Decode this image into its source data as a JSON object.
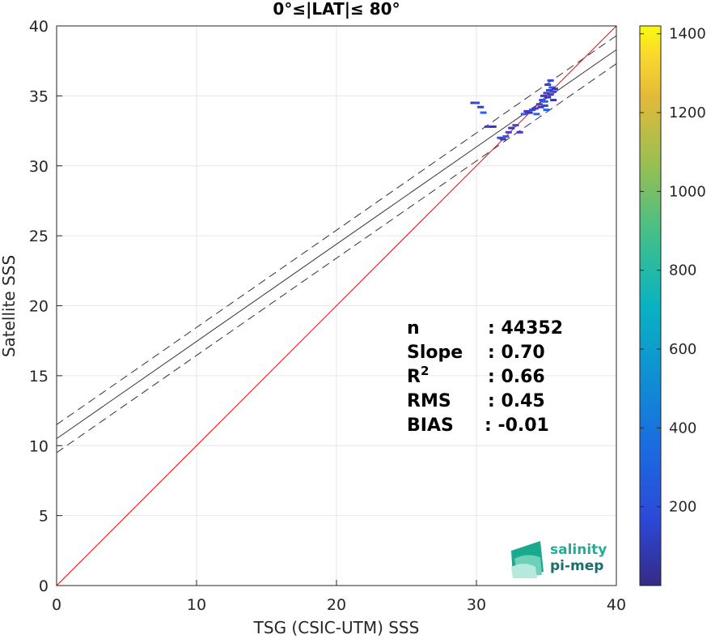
{
  "chart_data": {
    "type": "scatter",
    "title": "0°≤|LAT|≤ 80°",
    "xlabel": "TSG (CSIC-UTM) SSS",
    "ylabel": "Satellite SSS",
    "xlim": [
      0,
      40
    ],
    "ylim": [
      0,
      40
    ],
    "xticks": [
      "0",
      "10",
      "20",
      "30",
      "40"
    ],
    "yticks": [
      "0",
      "5",
      "10",
      "15",
      "20",
      "25",
      "30",
      "35",
      "40"
    ],
    "grid": true,
    "colorbar": {
      "ticks": [
        "200",
        "400",
        "600",
        "800",
        "1000",
        "1200",
        "1400"
      ],
      "tick_values": [
        200,
        400,
        600,
        800,
        1000,
        1200,
        1400
      ],
      "range": [
        0,
        1420
      ],
      "colormap": "parula"
    },
    "one_to_one_line": {
      "x": [
        0,
        40
      ],
      "y": [
        0,
        40
      ],
      "color": "#ff0000"
    },
    "fit_line": {
      "x": [
        0,
        40
      ],
      "y": [
        10.5,
        38.3
      ],
      "color": "#000000"
    },
    "fit_upper": {
      "x": [
        0,
        40
      ],
      "y": [
        11.5,
        39.3
      ]
    },
    "fit_lower": {
      "x": [
        0,
        40
      ],
      "y": [
        9.5,
        37.3
      ]
    },
    "points": [
      {
        "x": 29.8,
        "y": 34.5
      },
      {
        "x": 30.0,
        "y": 34.5
      },
      {
        "x": 30.3,
        "y": 34.2
      },
      {
        "x": 30.5,
        "y": 33.8
      },
      {
        "x": 30.8,
        "y": 32.8
      },
      {
        "x": 31.2,
        "y": 32.8
      },
      {
        "x": 31.7,
        "y": 32.0
      },
      {
        "x": 31.9,
        "y": 31.9
      },
      {
        "x": 32.1,
        "y": 32.1
      },
      {
        "x": 32.3,
        "y": 32.4
      },
      {
        "x": 32.5,
        "y": 32.7
      },
      {
        "x": 32.8,
        "y": 32.9
      },
      {
        "x": 33.1,
        "y": 32.4
      },
      {
        "x": 33.4,
        "y": 33.7
      },
      {
        "x": 33.6,
        "y": 33.9
      },
      {
        "x": 33.8,
        "y": 33.8
      },
      {
        "x": 34.0,
        "y": 34.0
      },
      {
        "x": 34.2,
        "y": 34.1
      },
      {
        "x": 34.3,
        "y": 33.7
      },
      {
        "x": 34.5,
        "y": 34.4
      },
      {
        "x": 34.6,
        "y": 34.2
      },
      {
        "x": 34.7,
        "y": 34.7
      },
      {
        "x": 34.8,
        "y": 35.0
      },
      {
        "x": 34.9,
        "y": 34.6
      },
      {
        "x": 35.0,
        "y": 35.2
      },
      {
        "x": 35.1,
        "y": 34.9
      },
      {
        "x": 35.2,
        "y": 35.4
      },
      {
        "x": 35.3,
        "y": 35.1
      },
      {
        "x": 35.4,
        "y": 35.6
      },
      {
        "x": 35.5,
        "y": 35.3
      },
      {
        "x": 35.6,
        "y": 35.5
      },
      {
        "x": 35.3,
        "y": 36.1
      },
      {
        "x": 35.1,
        "y": 35.8
      },
      {
        "x": 35.0,
        "y": 34.0
      },
      {
        "x": 34.9,
        "y": 34.3
      },
      {
        "x": 35.5,
        "y": 34.7
      }
    ],
    "stats": [
      {
        "label": "n",
        "value": ": 44352"
      },
      {
        "label": "Slope",
        "value": ": 0.70"
      },
      {
        "label": "R",
        "sup": "2",
        "value": ": 0.66"
      },
      {
        "label": "RMS",
        "value": ": 0.45"
      },
      {
        "label": "BIAS",
        "value": ": -0.01"
      }
    ]
  },
  "logo": {
    "line1": "salinity",
    "line2": "pi-mep"
  }
}
